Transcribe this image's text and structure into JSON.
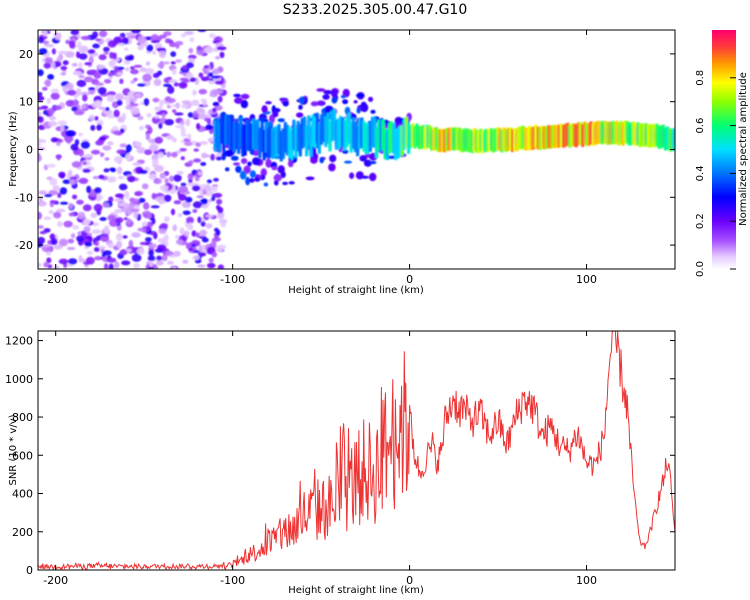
{
  "title": "S233.2025.305.00.47.G10",
  "chart_data": [
    {
      "type": "heatmap",
      "title": "S233.2025.305.00.47.G10",
      "xlabel": "Height of straight line (km)",
      "ylabel": "Frequency (Hz)",
      "xlim": [
        -210,
        150
      ],
      "ylim": [
        -25,
        25
      ],
      "xticks": [
        -200,
        -100,
        0,
        100
      ],
      "yticks": [
        -20,
        -10,
        0,
        10,
        20
      ],
      "colorbar": {
        "label": "Normalized spectral amplitude",
        "range": [
          0,
          1
        ],
        "ticks": [
          "0.0",
          "0.2",
          "0.4",
          "0.6",
          "0.8"
        ],
        "colormap": [
          "#ffffff",
          "#cf9bff",
          "#9b37ff",
          "#6a00ff",
          "#0000ff",
          "#0073ff",
          "#00e0ff",
          "#00ff73",
          "#8cff00",
          "#ffff00",
          "#ff9900",
          "#ff3a3a",
          "#ff006e"
        ]
      },
      "ridge": {
        "description": "dominant frequency track",
        "x": [
          -110,
          -95,
          -80,
          -65,
          -50,
          -40,
          -30,
          -20,
          -10,
          0,
          20,
          40,
          60,
          80,
          100,
          120,
          140,
          150
        ],
        "frequency": [
          3.5,
          2.5,
          1.5,
          2,
          3.5,
          4.5,
          3,
          2.5,
          2,
          3,
          2,
          1.8,
          2.2,
          2.8,
          3.2,
          3.5,
          2.8,
          2
        ],
        "peak_amplitude": [
          0.45,
          0.4,
          0.45,
          0.5,
          0.5,
          0.55,
          0.5,
          0.55,
          0.6,
          0.7,
          0.85,
          0.75,
          0.9,
          0.85,
          0.9,
          0.8,
          0.7,
          0.6
        ]
      },
      "noise_region": {
        "x_range": [
          -210,
          -105
        ],
        "frequency_range": [
          -25,
          25
        ],
        "amplitude": [
          0.05,
          0.3
        ]
      }
    },
    {
      "type": "line",
      "xlabel": "Height of straight line (km)",
      "ylabel": "SNR (10 * v/v)",
      "xlim": [
        -210,
        150
      ],
      "ylim": [
        0,
        1250
      ],
      "xticks": [
        -200,
        -100,
        0,
        100
      ],
      "yticks": [
        0,
        200,
        400,
        600,
        800,
        1000,
        1200
      ],
      "series": [
        {
          "name": "SNR",
          "color": "#ee3333",
          "x": [
            -210,
            -200,
            -180,
            -160,
            -140,
            -120,
            -110,
            -100,
            -95,
            -90,
            -85,
            -80,
            -75,
            -70,
            -65,
            -60,
            -55,
            -50,
            -45,
            -40,
            -35,
            -30,
            -25,
            -20,
            -15,
            -10,
            -8,
            -5,
            -3,
            0,
            3,
            6,
            10,
            13,
            15,
            18,
            20,
            25,
            28,
            30,
            35,
            40,
            45,
            50,
            55,
            60,
            65,
            70,
            75,
            80,
            85,
            90,
            95,
            100,
            105,
            110,
            113,
            115,
            118,
            120,
            123,
            125,
            128,
            130,
            133,
            136,
            140,
            143,
            146,
            148,
            150
          ],
          "values": [
            20,
            18,
            22,
            18,
            20,
            18,
            20,
            25,
            50,
            80,
            110,
            140,
            160,
            200,
            220,
            280,
            300,
            320,
            330,
            380,
            420,
            470,
            520,
            500,
            600,
            700,
            650,
            780,
            750,
            800,
            600,
            500,
            600,
            650,
            560,
            620,
            780,
            900,
            830,
            850,
            780,
            820,
            700,
            780,
            650,
            800,
            900,
            850,
            700,
            750,
            650,
            620,
            720,
            560,
            550,
            700,
            1100,
            1200,
            1150,
            1000,
            850,
            600,
            300,
            150,
            120,
            200,
            350,
            450,
            580,
            400,
            200
          ]
        }
      ]
    }
  ]
}
